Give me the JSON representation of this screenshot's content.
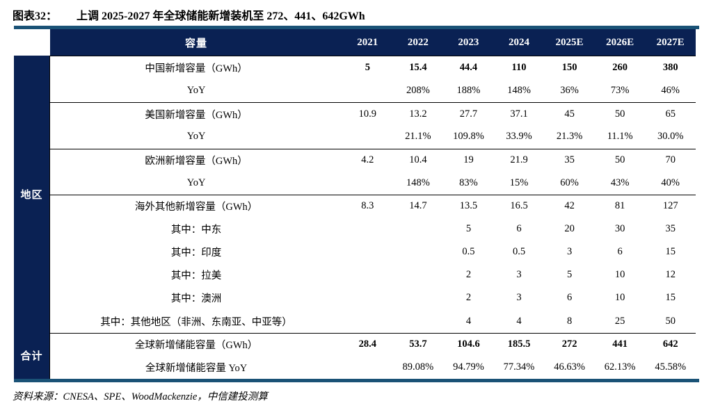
{
  "title": {
    "fig_label": "图表32：",
    "text": "上调 2025-2027 年全球储能新增装机至 272、441、642GWh"
  },
  "source": {
    "text": "资料来源：CNESA、SPE、WoodMackenzie，中信建投测算"
  },
  "colors": {
    "header_navy": "#0a2153",
    "rule_blue": "#1a5276",
    "body_text": "#000000",
    "header_text": "#ffffff"
  },
  "table": {
    "corner_label": "容量",
    "year_headers": [
      "2021",
      "2022",
      "2023",
      "2024",
      "2025E",
      "2026E",
      "2027E"
    ],
    "sidebar_groups": [
      {
        "label": "地区",
        "rows": 12
      },
      {
        "label": "合计",
        "rows": 2
      }
    ],
    "rows": [
      {
        "label": "中国新增容量（GWh）",
        "values": [
          "5",
          "15.4",
          "44.4",
          "110",
          "150",
          "260",
          "380"
        ],
        "bold": true,
        "border_top": false
      },
      {
        "label": "YoY",
        "values": [
          "",
          "208%",
          "188%",
          "148%",
          "36%",
          "73%",
          "46%"
        ],
        "bold": false,
        "border_top": false
      },
      {
        "label": "美国新增容量（GWh）",
        "values": [
          "10.9",
          "13.2",
          "27.7",
          "37.1",
          "45",
          "50",
          "65"
        ],
        "bold": false,
        "border_top": true
      },
      {
        "label": "YoY",
        "values": [
          "",
          "21.1%",
          "109.8%",
          "33.9%",
          "21.3%",
          "11.1%",
          "30.0%"
        ],
        "bold": false,
        "border_top": false
      },
      {
        "label": "欧洲新增容量（GWh）",
        "values": [
          "4.2",
          "10.4",
          "19",
          "21.9",
          "35",
          "50",
          "70"
        ],
        "bold": false,
        "border_top": true
      },
      {
        "label": "YoY",
        "values": [
          "",
          "148%",
          "83%",
          "15%",
          "60%",
          "43%",
          "40%"
        ],
        "bold": false,
        "border_top": false
      },
      {
        "label": "海外其他新增容量（GWh）",
        "values": [
          "8.3",
          "14.7",
          "13.5",
          "16.5",
          "42",
          "81",
          "127"
        ],
        "bold": false,
        "border_top": true
      },
      {
        "label": "其中：中东",
        "values": [
          "",
          "",
          "5",
          "6",
          "20",
          "30",
          "35"
        ],
        "bold": false,
        "border_top": false
      },
      {
        "label": "其中：印度",
        "values": [
          "",
          "",
          "0.5",
          "0.5",
          "3",
          "6",
          "15"
        ],
        "bold": false,
        "border_top": false
      },
      {
        "label": "其中：拉美",
        "values": [
          "",
          "",
          "2",
          "3",
          "5",
          "10",
          "12"
        ],
        "bold": false,
        "border_top": false
      },
      {
        "label": "其中：澳洲",
        "values": [
          "",
          "",
          "2",
          "3",
          "6",
          "10",
          "15"
        ],
        "bold": false,
        "border_top": false
      },
      {
        "label": "其中：其他地区（非洲、东南亚、中亚等）",
        "values": [
          "",
          "",
          "4",
          "4",
          "8",
          "25",
          "50"
        ],
        "bold": false,
        "border_top": false
      },
      {
        "label": "全球新增储能容量（GWh）",
        "values": [
          "28.4",
          "53.7",
          "104.6",
          "185.5",
          "272",
          "441",
          "642"
        ],
        "bold": true,
        "border_top": true
      },
      {
        "label": "全球新增储能容量 YoY",
        "values": [
          "",
          "89.08%",
          "94.79%",
          "77.34%",
          "46.63%",
          "62.13%",
          "45.58%"
        ],
        "bold": false,
        "border_top": false
      }
    ]
  }
}
